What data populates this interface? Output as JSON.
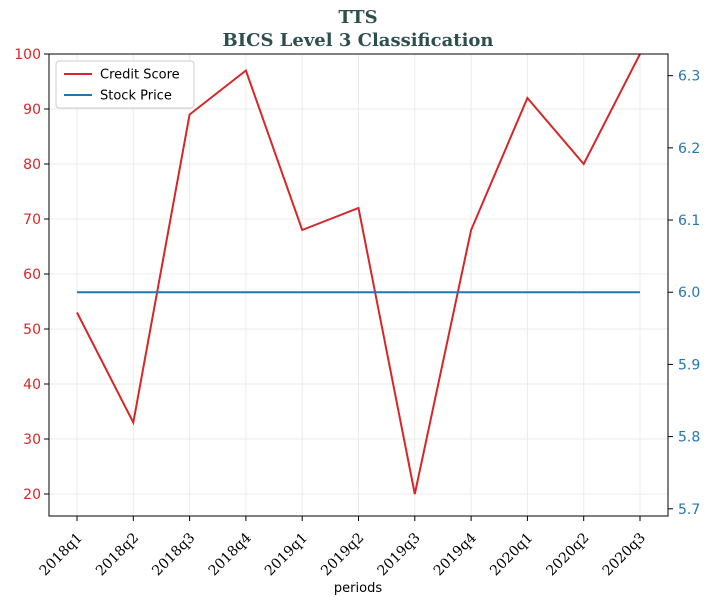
{
  "chart_data": {
    "type": "line",
    "title": "TTS",
    "subtitle": "BICS Level 3 Classification",
    "xlabel": "periods",
    "categories": [
      "2018q1",
      "2018q2",
      "2018q3",
      "2018q4",
      "2019q1",
      "2019q2",
      "2019q3",
      "2019q4",
      "2020q1",
      "2020q2",
      "2020q3"
    ],
    "y_left": {
      "ylim": [
        16,
        100
      ],
      "ticks": [
        20,
        30,
        40,
        50,
        60,
        70,
        80,
        90,
        100
      ],
      "color": "#d62728"
    },
    "y_right": {
      "ylim": [
        5.69,
        6.33
      ],
      "ticks": [
        "5.7",
        "5.8",
        "5.9",
        "6.0",
        "6.1",
        "6.2",
        "6.3"
      ],
      "color": "#1f77b4"
    },
    "series": [
      {
        "name": "Credit Score",
        "axis": "left",
        "color": "#d62728",
        "values": [
          53,
          33,
          89,
          97,
          68,
          72,
          20,
          68,
          92,
          80,
          100
        ]
      },
      {
        "name": "Stock Price",
        "axis": "right",
        "color": "#1f77b4",
        "values": [
          6.0,
          6.0,
          6.0,
          6.0,
          6.0,
          6.0,
          6.0,
          6.0,
          6.0,
          6.0,
          6.0
        ]
      }
    ],
    "grid": true,
    "legend": "top-left"
  }
}
